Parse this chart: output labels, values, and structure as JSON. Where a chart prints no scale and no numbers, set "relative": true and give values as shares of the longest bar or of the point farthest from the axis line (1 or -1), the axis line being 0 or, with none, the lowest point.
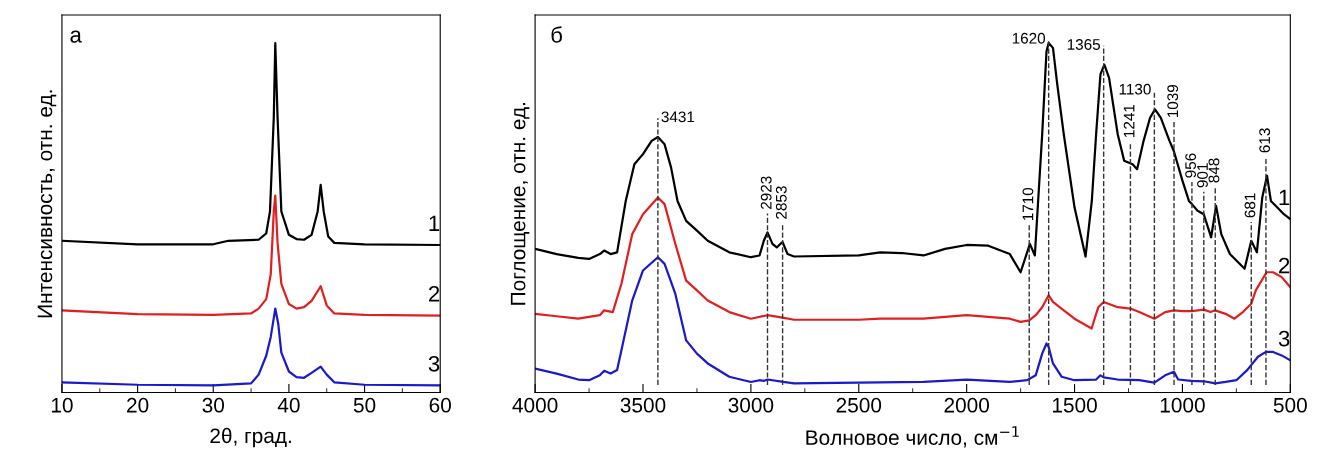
{
  "chart_data": [
    {
      "type": "line",
      "title": "а",
      "xlabel": "2θ, град.",
      "ylabel": "Интенсивность, отн. ед.",
      "relative": true,
      "tick_labels": "x",
      "grid": false,
      "legend": false,
      "xlim": [
        10,
        60
      ],
      "xticks": [
        10,
        {
          "value": 15,
          "label": null
        },
        20,
        {
          "value": 25,
          "label": null
        },
        30,
        {
          "value": 35,
          "label": null
        },
        40,
        {
          "value": 45,
          "label": null
        },
        50,
        {
          "value": 55,
          "label": null
        },
        60
      ],
      "series": [
        {
          "name": "1",
          "color": "#000000",
          "x": [
            10,
            20,
            30,
            32,
            36,
            37,
            37.5,
            38,
            38.2,
            38.5,
            39,
            40,
            41,
            42,
            43,
            43.8,
            44.2,
            44.6,
            45.2,
            46,
            50,
            60
          ],
          "values": [
            0.434,
            0.424,
            0.424,
            0.434,
            0.437,
            0.455,
            0.518,
            0.787,
            1.0,
            0.787,
            0.518,
            0.451,
            0.439,
            0.437,
            0.451,
            0.518,
            0.594,
            0.518,
            0.446,
            0.428,
            0.424,
            0.422
          ]
        },
        {
          "name": "2",
          "color": "#e02020",
          "x": [
            10,
            20,
            30,
            35,
            36,
            37,
            37.6,
            38,
            38.2,
            38.5,
            39,
            40,
            41,
            42,
            43,
            44.2,
            45,
            46,
            50,
            60
          ],
          "values": [
            0.235,
            0.224,
            0.222,
            0.226,
            0.24,
            0.267,
            0.338,
            0.518,
            0.563,
            0.428,
            0.311,
            0.253,
            0.24,
            0.244,
            0.262,
            0.304,
            0.249,
            0.226,
            0.222,
            0.22
          ]
        },
        {
          "name": "3",
          "color": "#1a1acc",
          "x": [
            10,
            20,
            30,
            35,
            36,
            37,
            37.6,
            38.2,
            38.6,
            39,
            40,
            41,
            42,
            43,
            44.2,
            45,
            46,
            50,
            60
          ],
          "values": [
            0.029,
            0.022,
            0.02,
            0.026,
            0.051,
            0.105,
            0.159,
            0.24,
            0.195,
            0.114,
            0.06,
            0.044,
            0.042,
            0.056,
            0.074,
            0.051,
            0.029,
            0.022,
            0.02
          ]
        }
      ]
    },
    {
      "type": "line",
      "title": "б",
      "xlabel": "Волновое число, см$^{−1}$",
      "ylabel": "Поглощение, отн. ед.",
      "relative": true,
      "tick_labels": "x",
      "grid": false,
      "legend": false,
      "xlim": [
        4000,
        500
      ],
      "xticks": [
        4000,
        {
          "value": 3750,
          "label": null
        },
        3500,
        {
          "value": 3250,
          "label": null
        },
        3000,
        {
          "value": 2750,
          "label": null
        },
        2500,
        {
          "value": 2250,
          "label": null
        },
        2000,
        {
          "value": 1750,
          "label": null
        },
        1500,
        {
          "value": 1250,
          "label": null
        },
        1000,
        {
          "value": 750,
          "label": null
        },
        500
      ],
      "series": [
        {
          "name": "1",
          "color": "#000000",
          "x": [
            4000,
            3900,
            3800,
            3750,
            3700,
            3680,
            3650,
            3620,
            3580,
            3540,
            3500,
            3460,
            3431,
            3400,
            3370,
            3340,
            3300,
            3250,
            3200,
            3100,
            3000,
            2960,
            2940,
            2923,
            2900,
            2880,
            2860,
            2853,
            2830,
            2800,
            2500,
            2400,
            2300,
            2200,
            2100,
            2000,
            1900,
            1800,
            1750,
            1707,
            1684,
            1650,
            1630,
            1620,
            1600,
            1580,
            1550,
            1500,
            1449,
            1420,
            1400,
            1380,
            1362,
            1340,
            1300,
            1270,
            1231,
            1210,
            1180,
            1150,
            1127,
            1100,
            1060,
            1040,
            1000,
            970,
            956,
            930,
            901,
            867,
            844,
            820,
            780,
            712,
            681,
            655,
            630,
            608,
            590,
            560,
            530,
            500
          ],
          "values": [
            0.411,
            0.396,
            0.385,
            0.382,
            0.396,
            0.406,
            0.396,
            0.401,
            0.548,
            0.653,
            0.682,
            0.72,
            0.731,
            0.71,
            0.644,
            0.548,
            0.491,
            0.463,
            0.434,
            0.401,
            0.387,
            0.392,
            0.434,
            0.458,
            0.425,
            0.415,
            0.427,
            0.43,
            0.396,
            0.389,
            0.392,
            0.401,
            0.399,
            0.392,
            0.411,
            0.422,
            0.42,
            0.396,
            0.344,
            0.425,
            0.392,
            0.739,
            0.976,
            1.0,
            0.986,
            0.881,
            0.739,
            0.529,
            0.389,
            0.548,
            0.739,
            0.91,
            0.938,
            0.9,
            0.739,
            0.663,
            0.653,
            0.639,
            0.72,
            0.786,
            0.81,
            0.786,
            0.72,
            0.691,
            0.606,
            0.548,
            0.539,
            0.52,
            0.51,
            0.444,
            0.534,
            0.453,
            0.396,
            0.354,
            0.434,
            0.401,
            0.558,
            0.62,
            0.548,
            0.529,
            0.51,
            0.496
          ]
        },
        {
          "name": "2",
          "color": "#e02020",
          "x": [
            4000,
            3900,
            3800,
            3700,
            3680,
            3640,
            3600,
            3550,
            3500,
            3431,
            3400,
            3350,
            3300,
            3250,
            3200,
            3100,
            3000,
            2923,
            2853,
            2800,
            2500,
            2400,
            2200,
            2000,
            1800,
            1750,
            1710,
            1680,
            1650,
            1620,
            1600,
            1550,
            1500,
            1421,
            1390,
            1365,
            1300,
            1241,
            1200,
            1130,
            1080,
            1039,
            1000,
            956,
            901,
            870,
            848,
            800,
            759,
            720,
            681,
            660,
            610,
            580,
            540,
            500
          ],
          "values": [
            0.225,
            0.218,
            0.211,
            0.221,
            0.235,
            0.23,
            0.311,
            0.453,
            0.51,
            0.558,
            0.539,
            0.425,
            0.32,
            0.292,
            0.263,
            0.23,
            0.211,
            0.221,
            0.214,
            0.208,
            0.208,
            0.211,
            0.211,
            0.221,
            0.211,
            0.202,
            0.206,
            0.221,
            0.244,
            0.278,
            0.259,
            0.235,
            0.211,
            0.183,
            0.244,
            0.259,
            0.244,
            0.24,
            0.23,
            0.211,
            0.23,
            0.235,
            0.233,
            0.233,
            0.237,
            0.23,
            0.235,
            0.225,
            0.211,
            0.23,
            0.254,
            0.292,
            0.344,
            0.344,
            0.33,
            0.301
          ]
        },
        {
          "name": "3",
          "color": "#1a1acc",
          "x": [
            4000,
            3900,
            3800,
            3750,
            3700,
            3680,
            3650,
            3620,
            3600,
            3550,
            3500,
            3431,
            3400,
            3350,
            3300,
            3250,
            3200,
            3100,
            3000,
            2960,
            2940,
            2923,
            2850,
            2800,
            2500,
            2200,
            2000,
            1800,
            1720,
            1680,
            1650,
            1630,
            1620,
            1600,
            1560,
            1500,
            1400,
            1380,
            1365,
            1300,
            1200,
            1130,
            1080,
            1039,
            1020,
            960,
            900,
            848,
            800,
            750,
            700,
            650,
            613,
            580,
            540,
            500
          ],
          "values": [
            0.068,
            0.054,
            0.037,
            0.035,
            0.049,
            0.062,
            0.054,
            0.064,
            0.121,
            0.263,
            0.349,
            0.387,
            0.368,
            0.282,
            0.149,
            0.111,
            0.083,
            0.045,
            0.03,
            0.035,
            0.033,
            0.037,
            0.03,
            0.026,
            0.028,
            0.03,
            0.037,
            0.03,
            0.035,
            0.049,
            0.111,
            0.14,
            0.13,
            0.083,
            0.045,
            0.035,
            0.037,
            0.049,
            0.043,
            0.037,
            0.035,
            0.028,
            0.049,
            0.059,
            0.037,
            0.033,
            0.032,
            0.026,
            0.03,
            0.035,
            0.064,
            0.102,
            0.116,
            0.116,
            0.106,
            0.092
          ]
        }
      ],
      "ref_lines": [
        {
          "axis": "x",
          "value": 3431,
          "label": "3431",
          "line_style": "dashed"
        },
        {
          "axis": "x",
          "value": 2923,
          "label": "2923",
          "line_style": "dashed"
        },
        {
          "axis": "x",
          "value": 2853,
          "label": "2853",
          "line_style": "dashed"
        },
        {
          "axis": "x",
          "value": 1710,
          "label": "1710",
          "line_style": "dashed"
        },
        {
          "axis": "x",
          "value": 1620,
          "label": "1620",
          "line_style": "dashed"
        },
        {
          "axis": "x",
          "value": 1365,
          "label": "1365",
          "line_style": "dashed"
        },
        {
          "axis": "x",
          "value": 1241,
          "label": "1241",
          "line_style": "dashed"
        },
        {
          "axis": "x",
          "value": 1130,
          "label": "1130",
          "line_style": "dashed"
        },
        {
          "axis": "x",
          "value": 1039,
          "label": "1039",
          "line_style": "dashed"
        },
        {
          "axis": "x",
          "value": 956,
          "label": "956",
          "line_style": "dashed"
        },
        {
          "axis": "x",
          "value": 901,
          "label": "901",
          "line_style": "dashed"
        },
        {
          "axis": "x",
          "value": 848,
          "label": "848",
          "line_style": "dashed"
        },
        {
          "axis": "x",
          "value": 681,
          "label": "681",
          "line_style": "dashed"
        },
        {
          "axis": "x",
          "value": 613,
          "label": "613",
          "line_style": "dashed"
        }
      ]
    }
  ]
}
